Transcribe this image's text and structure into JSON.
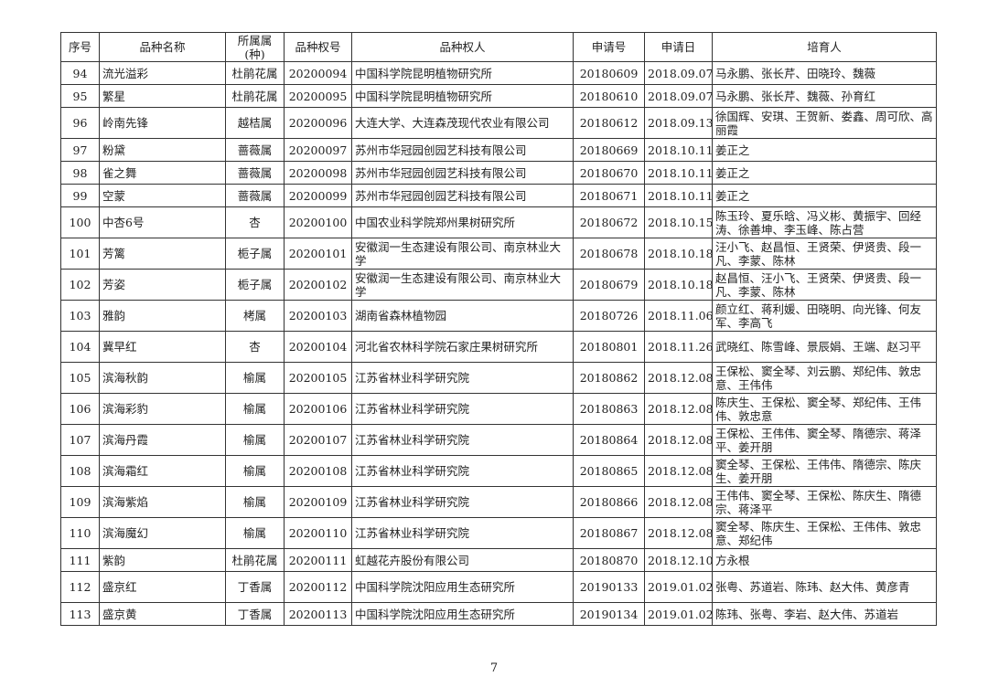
{
  "headers": [
    "序号",
    "品种名称",
    "所属属(种)",
    "品种权号",
    "品种权人",
    "申请号",
    "申请日",
    "培育人"
  ],
  "rows": [
    [
      "94",
      "流光溢彩",
      "杜鹃花属",
      "20200094",
      "中国科学院昆明植物研究所",
      "20180609",
      "2018.09.07",
      "马永鹏、张长芹、田晓玲、魏薇"
    ],
    [
      "95",
      "繁星",
      "杜鹃花属",
      "20200095",
      "中国科学院昆明植物研究所",
      "20180610",
      "2018.09.07",
      "马永鹏、张长芹、魏薇、孙育红"
    ],
    [
      "96",
      "岭南先锋",
      "越桔属",
      "20200096",
      "大连大学、大连森茂现代农业有限公司",
      "20180612",
      "2018.09.13",
      "徐国辉、安琪、王贺新、娄鑫、周可欣、高丽霞"
    ],
    [
      "97",
      "粉黛",
      "蔷薇属",
      "20200097",
      "苏州市华冠园创园艺科技有限公司",
      "20180669",
      "2018.10.11",
      "姜正之"
    ],
    [
      "98",
      "雀之舞",
      "蔷薇属",
      "20200098",
      "苏州市华冠园创园艺科技有限公司",
      "20180670",
      "2018.10.11",
      "姜正之"
    ],
    [
      "99",
      "空蒙",
      "蔷薇属",
      "20200099",
      "苏州市华冠园创园艺科技有限公司",
      "20180671",
      "2018.10.11",
      "姜正之"
    ],
    [
      "100",
      "中杏6号",
      "杏",
      "20200100",
      "中国农业科学院郑州果树研究所",
      "20180672",
      "2018.10.15",
      "陈玉玲、夏乐晗、冯义彬、黄振宇、回经涛、徐善坤、李玉峰、陈占营"
    ],
    [
      "101",
      "芳篱",
      "栀子属",
      "20200101",
      "安徽润一生态建设有限公司、南京林业大学",
      "20180678",
      "2018.10.18",
      "汪小飞、赵昌恒、王贤荣、伊贤贵、段一凡、李蒙、陈林"
    ],
    [
      "102",
      "芳姿",
      "栀子属",
      "20200102",
      "安徽润一生态建设有限公司、南京林业大学",
      "20180679",
      "2018.10.18",
      "赵昌恒、汪小飞、王贤荣、伊贤贵、段一凡、李蒙、陈林"
    ],
    [
      "103",
      "雅韵",
      "栲属",
      "20200103",
      "湖南省森林植物园",
      "20180726",
      "2018.11.06",
      "颜立红、蒋利媛、田晓明、向光锋、何友军、李高飞"
    ],
    [
      "104",
      "冀早红",
      "杏",
      "20200104",
      "河北省农林科学院石家庄果树研究所",
      "20180801",
      "2018.11.26",
      "武晓红、陈雪峰、景辰娟、王端、赵习平"
    ],
    [
      "105",
      "滨海秋韵",
      "榆属",
      "20200105",
      "江苏省林业科学研究院",
      "20180862",
      "2018.12.08",
      "王保松、窦全琴、刘云鹏、郑纪伟、敦忠意、王伟伟"
    ],
    [
      "106",
      "滨海彩豹",
      "榆属",
      "20200106",
      "江苏省林业科学研究院",
      "20180863",
      "2018.12.08",
      "陈庆生、王保松、窦全琴、郑纪伟、王伟伟、敦忠意"
    ],
    [
      "107",
      "滨海丹霞",
      "榆属",
      "20200107",
      "江苏省林业科学研究院",
      "20180864",
      "2018.12.08",
      "王保松、王伟伟、窦全琴、隋德宗、蒋泽平、姜开朋"
    ],
    [
      "108",
      "滨海霜红",
      "榆属",
      "20200108",
      "江苏省林业科学研究院",
      "20180865",
      "2018.12.08",
      "窦全琴、王保松、王伟伟、隋德宗、陈庆生、姜开朋"
    ],
    [
      "109",
      "滨海紫焰",
      "榆属",
      "20200109",
      "江苏省林业科学研究院",
      "20180866",
      "2018.12.08",
      "王伟伟、窦全琴、王保松、陈庆生、隋德宗、蒋泽平"
    ],
    [
      "110",
      "滨海魔幻",
      "榆属",
      "20200110",
      "江苏省林业科学研究院",
      "20180867",
      "2018.12.08",
      "窦全琴、陈庆生、王保松、王伟伟、敦忠意、郑纪伟"
    ],
    [
      "111",
      "紫韵",
      "杜鹃花属",
      "20200111",
      "虹越花卉股份有限公司",
      "20180870",
      "2018.12.10",
      "方永根"
    ],
    [
      "112",
      "盛京红",
      "丁香属",
      "20200112",
      "中国科学院沈阳应用生态研究所",
      "20190133",
      "2019.01.02",
      "张粤、苏道岩、陈玮、赵大伟、黄彦青"
    ],
    [
      "113",
      "盛京黄",
      "丁香属",
      "20200113",
      "中国科学院沈阳应用生态研究所",
      "20190134",
      "2019.01.02",
      "陈玮、张粤、李岩、赵大伟、苏道岩"
    ]
  ],
  "page_number": "7"
}
